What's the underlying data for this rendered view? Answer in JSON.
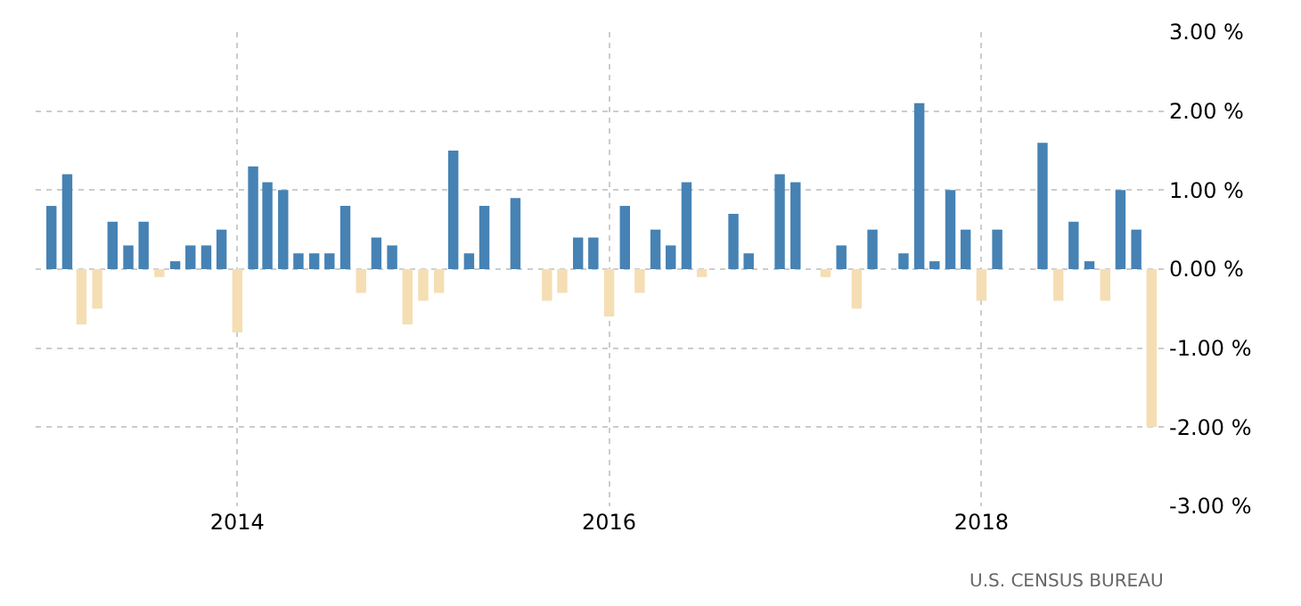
{
  "chart_data": {
    "type": "bar",
    "x": [
      "2013-01",
      "2013-02",
      "2013-03",
      "2013-04",
      "2013-05",
      "2013-06",
      "2013-07",
      "2013-08",
      "2013-09",
      "2013-10",
      "2013-11",
      "2013-12",
      "2014-01",
      "2014-02",
      "2014-03",
      "2014-04",
      "2014-05",
      "2014-06",
      "2014-07",
      "2014-08",
      "2014-09",
      "2014-10",
      "2014-11",
      "2014-12",
      "2015-01",
      "2015-02",
      "2015-03",
      "2015-04",
      "2015-05",
      "2015-06",
      "2015-07",
      "2015-08",
      "2015-09",
      "2015-10",
      "2015-11",
      "2015-12",
      "2016-01",
      "2016-02",
      "2016-03",
      "2016-04",
      "2016-05",
      "2016-06",
      "2016-07",
      "2016-08",
      "2016-09",
      "2016-10",
      "2016-11",
      "2016-12",
      "2017-01",
      "2017-02",
      "2017-03",
      "2017-04",
      "2017-05",
      "2017-06",
      "2017-07",
      "2017-08",
      "2017-09",
      "2017-10",
      "2017-11",
      "2017-12",
      "2018-01",
      "2018-02",
      "2018-03",
      "2018-04",
      "2018-05",
      "2018-06",
      "2018-07",
      "2018-08",
      "2018-09",
      "2018-10",
      "2018-11",
      "2018-12"
    ],
    "values": [
      0.8,
      1.2,
      -0.7,
      -0.5,
      0.6,
      0.3,
      0.6,
      -0.1,
      0.1,
      0.3,
      0.3,
      0.5,
      -0.8,
      1.3,
      1.1,
      1.0,
      0.2,
      0.2,
      0.2,
      0.8,
      -0.3,
      0.4,
      0.3,
      -0.7,
      -0.4,
      -0.3,
      1.5,
      0.2,
      0.8,
      0,
      0.9,
      0,
      -0.4,
      -0.3,
      0.4,
      0.4,
      -0.6,
      0.8,
      -0.3,
      0.5,
      0.3,
      1.1,
      -0.1,
      0,
      0.7,
      0.2,
      0,
      1.2,
      1.1,
      0,
      -0.1,
      0.3,
      -0.5,
      0.5,
      0,
      0.2,
      2.1,
      0.1,
      1.0,
      0.5,
      -0.4,
      0.5,
      0,
      0,
      1.6,
      -0.4,
      0.6,
      0.1,
      -0.4,
      1.0,
      0.5,
      -2.0
    ],
    "colors": [
      "#4682b4",
      "#4682b4",
      "#f5deb3",
      "#f5deb3",
      "#4682b4",
      "#4682b4",
      "#4682b4",
      "#f5deb3",
      "#4682b4",
      "#4682b4",
      "#4682b4",
      "#4682b4",
      "#f5deb3",
      "#4682b4",
      "#4682b4",
      "#4682b4",
      "#4682b4",
      "#4682b4",
      "#4682b4",
      "#4682b4",
      "#f5deb3",
      "#4682b4",
      "#4682b4",
      "#f5deb3",
      "#f5deb3",
      "#f5deb3",
      "#4682b4",
      "#4682b4",
      "#4682b4",
      "#4682b4",
      "#4682b4",
      "#4682b4",
      "#f5deb3",
      "#f5deb3",
      "#4682b4",
      "#4682b4",
      "#f5deb3",
      "#4682b4",
      "#f5deb3",
      "#4682b4",
      "#4682b4",
      "#4682b4",
      "#f5deb3",
      "#4682b4",
      "#4682b4",
      "#4682b4",
      "#4682b4",
      "#4682b4",
      "#4682b4",
      "#4682b4",
      "#f5deb3",
      "#4682b4",
      "#f5deb3",
      "#4682b4",
      "#4682b4",
      "#4682b4",
      "#4682b4",
      "#4682b4",
      "#4682b4",
      "#4682b4",
      "#f5deb3",
      "#4682b4",
      "#4682b4",
      "#4682b4",
      "#4682b4",
      "#f5deb3",
      "#4682b4",
      "#4682b4",
      "#f5deb3",
      "#4682b4",
      "#4682b4",
      "#f5deb3"
    ],
    "xlim": [
      "2012-12-01",
      "2019-01-01"
    ],
    "xticks": [
      "2014",
      "2016",
      "2018"
    ],
    "ylim": [
      -3,
      3
    ],
    "yticks": [
      {
        "value": 3,
        "label": "3.00 %"
      },
      {
        "value": 2,
        "label": "2.00 %"
      },
      {
        "value": 1,
        "label": "1.00 %"
      },
      {
        "value": 0,
        "label": "0.00 %"
      },
      {
        "value": -1,
        "label": "-1.00 %"
      },
      {
        "value": -2,
        "label": "-2.00 %"
      },
      {
        "value": -3,
        "label": "-3.00 %"
      }
    ],
    "grid": true,
    "annotations": [
      "U.S. CENSUS BUREAU"
    ]
  }
}
